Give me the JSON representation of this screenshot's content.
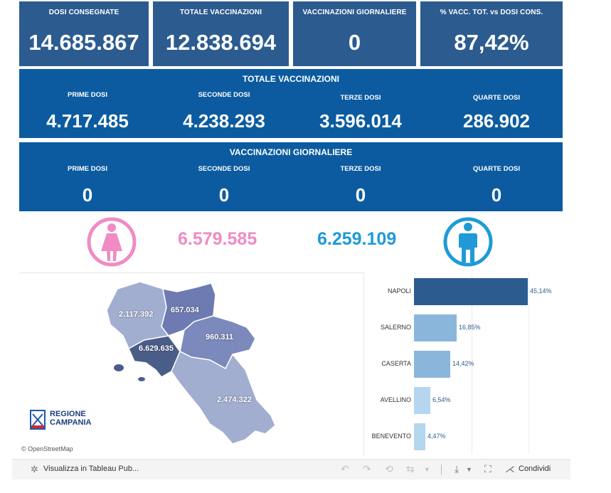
{
  "kpis": [
    {
      "label": "DOSI  CONSEGNATE",
      "value": "14.685.867"
    },
    {
      "label": "TOTALE VACCINAZIONI",
      "value": "12.838.694"
    },
    {
      "label": "VACCINAZIONI GIORNALIERE",
      "value": "0"
    },
    {
      "label": "% VACC. TOT. vs DOSI CONS.",
      "value": "87,42%"
    }
  ],
  "totale_vaccinazioni": {
    "title": "TOTALE VACCINAZIONI",
    "items": [
      {
        "label": "PRIME DOSI",
        "value": "4.717.485"
      },
      {
        "label": "SECONDE DOSI",
        "value": "4.238.293"
      },
      {
        "label": "TERZE DOSI",
        "value": "3.596.014"
      },
      {
        "label": "QUARTE DOSI",
        "value": "286.902"
      }
    ]
  },
  "vaccinazioni_giornaliere": {
    "title": "VACCINAZIONI GIORNALIERE",
    "items": [
      {
        "label": "PRIME DOSI",
        "value": "0"
      },
      {
        "label": "SECONDE DOSI",
        "value": "0"
      },
      {
        "label": "TERZE DOSI",
        "value": "0"
      },
      {
        "label": "QUARTE DOSI",
        "value": "0"
      }
    ]
  },
  "gender": {
    "female_value": "6.579.585",
    "male_value": "6.259.109",
    "female_icon": "female-person-icon",
    "male_icon": "male-person-icon",
    "female_color": "#f08bc4",
    "male_color": "#1f9ad6"
  },
  "map": {
    "labels": {
      "caserta": "2.117.392",
      "benevento": "657.034",
      "avellino": "960.311",
      "napoli": "6.629.635",
      "salerno": "2.474.322"
    },
    "logo_line1": "REGIONE",
    "logo_line2": "CAMPANIA",
    "attribution": "© OpenStreetMap"
  },
  "province_bars": [
    {
      "name": "NAPOLI",
      "pct": "45,14%",
      "value": 45.14,
      "color": "#2c5b8f"
    },
    {
      "name": "SALERNO",
      "pct": "16,85%",
      "value": 16.85,
      "color": "#8ab6dc"
    },
    {
      "name": "CASERTA",
      "pct": "14,42%",
      "value": 14.42,
      "color": "#8ab6dc"
    },
    {
      "name": "AVELLINO",
      "pct": "6,54%",
      "value": 6.54,
      "color": "#b4d6ee"
    },
    {
      "name": "BENEVENTO",
      "pct": "4,47%",
      "value": 4.47,
      "color": "#b4d6ee"
    }
  ],
  "toolbar": {
    "view_label": "Visualizza in Tableau Pub...",
    "share_label": "Condividi"
  },
  "colors": {
    "kpi_bg": "#2c5b8f",
    "band_bg": "#0c5ba0"
  }
}
